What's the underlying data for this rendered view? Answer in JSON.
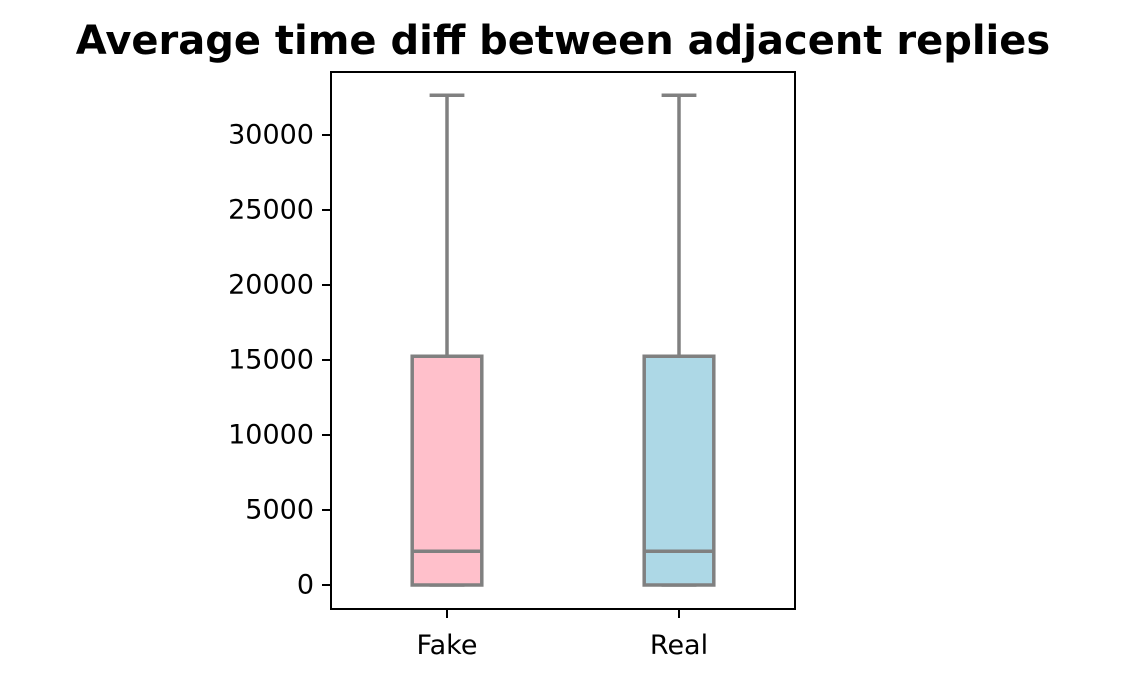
{
  "chart_data": {
    "type": "box",
    "title": "Average time diff between adjacent replies",
    "xlabel": "",
    "ylabel": "",
    "categories": [
      "Fake",
      "Real"
    ],
    "ylim": [
      -1600,
      34200
    ],
    "yticks": [
      0,
      5000,
      10000,
      15000,
      20000,
      25000,
      30000
    ],
    "ytick_labels": [
      "0",
      "5000",
      "10000",
      "15000",
      "20000",
      "25000",
      "30000"
    ],
    "grid": false,
    "boxes": [
      {
        "category": "Fake",
        "whisker_low": 0,
        "q1": 0,
        "median": 2250,
        "q3": 15250,
        "whisker_high": 32650,
        "color": "#ffc0cb"
      },
      {
        "category": "Real",
        "whisker_low": 0,
        "q1": 0,
        "median": 2250,
        "q3": 15250,
        "whisker_high": 32650,
        "color": "#add8e6"
      }
    ],
    "line_color": "#808080"
  }
}
